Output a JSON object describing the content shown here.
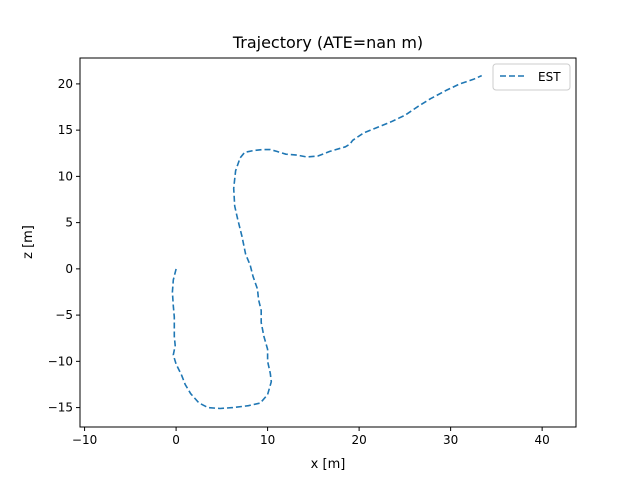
{
  "chart_data": {
    "type": "line",
    "title": "Trajectory (ATE=nan m)",
    "xlabel": "x [m]",
    "ylabel": "z [m]",
    "xlim": [
      -10.5,
      43.7
    ],
    "ylim": [
      -17.1,
      22.8
    ],
    "xticks": [
      -10,
      0,
      10,
      20,
      30,
      40
    ],
    "yticks": [
      -15,
      -10,
      -5,
      0,
      5,
      10,
      15,
      20
    ],
    "grid": false,
    "legend_position": "top-right",
    "series": [
      {
        "name": "EST",
        "color": "#1f77b4",
        "line_style": "dashed",
        "x": [
          0.0,
          -0.3,
          -0.4,
          -0.3,
          -0.2,
          -0.2,
          -0.2,
          -0.1,
          -0.3,
          0.0,
          0.6,
          1.0,
          1.6,
          2.5,
          3.5,
          4.8,
          6.2,
          7.9,
          9.2,
          10.0,
          10.4,
          10.3,
          10.0,
          10.0,
          9.6,
          9.3,
          9.3,
          9.0,
          8.9,
          8.4,
          8.1,
          7.6,
          7.2,
          6.7,
          6.4,
          6.3,
          6.5,
          7.0,
          7.5,
          8.5,
          9.4,
          10.3,
          11.0,
          12.0,
          13.2,
          14.3,
          15.5,
          16.8,
          18.5,
          19.0,
          19.3,
          20.5,
          22.0,
          23.5,
          25.0,
          26.5,
          27.8,
          29.5,
          31.0,
          32.5,
          33.4
        ],
        "y": [
          0.0,
          -1.2,
          -2.5,
          -4.0,
          -5.2,
          -6.3,
          -7.3,
          -8.3,
          -9.3,
          -10.3,
          -11.5,
          -12.5,
          -13.5,
          -14.5,
          -15.0,
          -15.1,
          -15.0,
          -14.8,
          -14.5,
          -13.6,
          -12.2,
          -11.3,
          -10.0,
          -8.7,
          -7.3,
          -5.8,
          -4.5,
          -3.3,
          -2.2,
          -0.8,
          0.4,
          1.6,
          3.5,
          5.5,
          6.8,
          8.7,
          10.6,
          12.0,
          12.6,
          12.8,
          12.9,
          12.9,
          12.7,
          12.4,
          12.3,
          12.1,
          12.2,
          12.7,
          13.2,
          13.5,
          13.9,
          14.7,
          15.3,
          15.9,
          16.6,
          17.6,
          18.4,
          19.3,
          20.0,
          20.5,
          20.9
        ]
      }
    ]
  }
}
